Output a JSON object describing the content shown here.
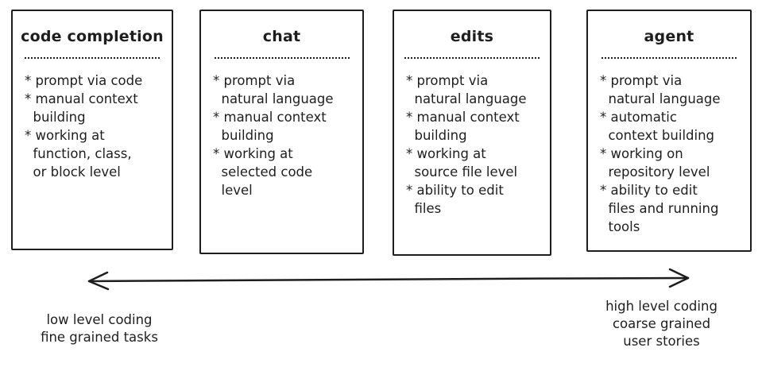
{
  "cards": [
    {
      "title": "code completion",
      "items": [
        "* prompt via code",
        "* manual context",
        "  building",
        "* working at",
        "  function, class,",
        "  or block level"
      ]
    },
    {
      "title": "chat",
      "items": [
        "* prompt via",
        "  natural language",
        "* manual context",
        "  building",
        "* working at",
        "  selected code",
        "  level"
      ]
    },
    {
      "title": "edits",
      "items": [
        "* prompt via",
        "  natural language",
        "* manual context",
        "  building",
        "* working at",
        "  source file level",
        "* ability to edit",
        "  files"
      ]
    },
    {
      "title": "agent",
      "items": [
        "* prompt via",
        "  natural language",
        "* automatic",
        "  context building",
        "* working on",
        "  repository level",
        "* ability to edit",
        "  files and running",
        "  tools"
      ]
    }
  ],
  "axis": {
    "left_label": "low level coding\nfine grained tasks",
    "right_label": "high level coding\ncoarse grained\nuser stories"
  }
}
